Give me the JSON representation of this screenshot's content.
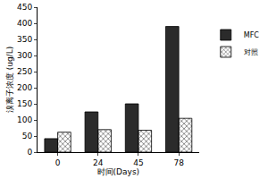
{
  "chart_data": {
    "type": "bar",
    "categories": [
      "0",
      "24",
      "45",
      "78"
    ],
    "series": [
      {
        "name": "MFC",
        "color": "#2b2b2b",
        "values": [
          42,
          125,
          150,
          390
        ]
      },
      {
        "name": "对照",
        "color": "#d9d9d9",
        "values": [
          62,
          70,
          68,
          105
        ]
      }
    ],
    "x_label": "时间(Days)",
    "y_label": "溴离子浓度 (ug/L)",
    "ylim": [
      0,
      450
    ],
    "yticks": [
      0,
      50,
      100,
      150,
      200,
      250,
      300,
      350,
      400,
      450
    ],
    "grid": false,
    "legend": "right"
  }
}
